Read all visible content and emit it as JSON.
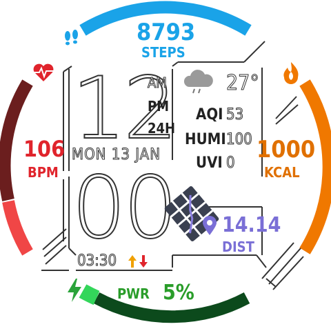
{
  "steps": {
    "value": "8793",
    "label": "STEPS",
    "color": "#1aa3e8"
  },
  "heart": {
    "value": "106",
    "label": "BPM",
    "color": "#e0242c"
  },
  "calories": {
    "value": "1000",
    "label": "KCAL",
    "color": "#e07000"
  },
  "time": {
    "hour": "12",
    "minute": "00",
    "am": "AM",
    "pm": "PM",
    "format24": "24H",
    "secondary": "03:30"
  },
  "date": {
    "text": "MON 13 JAN"
  },
  "weather": {
    "temp": "27°",
    "icon": "cloud-rain-icon"
  },
  "env": {
    "aqi_label": "AQI",
    "aqi_value": "53",
    "humi_label": "HUMI",
    "humi_value": "100",
    "uvi_label": "UVI",
    "uvi_value": "0"
  },
  "distance": {
    "value": "14.14",
    "label": "DIST",
    "color": "#7a6fd6"
  },
  "power": {
    "label": "PWR",
    "value": "5%",
    "color": "#2a9d2a",
    "level": 0.05
  },
  "colors": {
    "steps_arc": "#1aa3e8",
    "heart_arc_dark": "#6b1e1e",
    "heart_arc_light": "#f04040",
    "kcal_arc": "#f07800",
    "pwr_arc_dark": "#0c4a1c",
    "pwr_arc_light": "#33d65a"
  }
}
